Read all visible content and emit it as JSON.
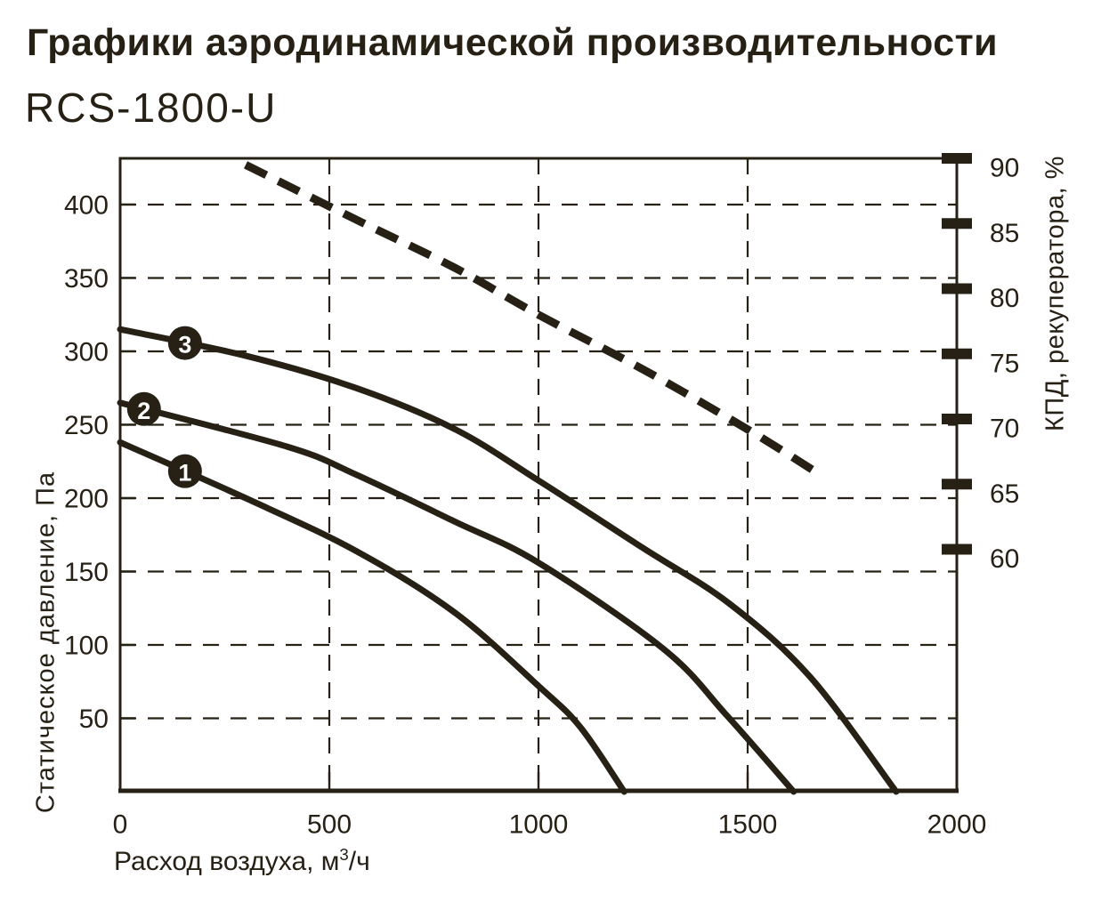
{
  "colors": {
    "ink": "#262015",
    "background": "#ffffff",
    "marker_text": "#ffffff"
  },
  "chart_data": {
    "type": "line",
    "title": "Графики аэродинамической производительности",
    "subtitle": "RCS-1800-U",
    "grid": true,
    "legend": "none",
    "x_axis": {
      "label_prefix": "Расход воздуха, м",
      "label_sup": "3",
      "label_suffix": "/ч",
      "ticks": [
        0,
        500,
        1000,
        1500,
        2000
      ],
      "range": [
        0,
        2000
      ]
    },
    "y_left_axis": {
      "label": "Статическое давление, Па",
      "ticks": [
        50,
        100,
        150,
        200,
        250,
        300,
        350,
        400
      ],
      "range": [
        0,
        431.5
      ]
    },
    "y_right_axis": {
      "label": "КПД, рекуператора, %",
      "ticks": [
        60,
        65,
        70,
        75,
        80,
        85,
        90
      ],
      "range": [
        41.4,
        90
      ]
    },
    "series": [
      {
        "id": "fan-curve-1",
        "marker_label": "1",
        "marker_flow": 155,
        "style": "solid",
        "axis": "left",
        "points": [
          [
            0,
            238
          ],
          [
            300,
            200
          ],
          [
            564,
            164
          ],
          [
            800,
            122
          ],
          [
            1000,
            72
          ],
          [
            1100,
            44
          ],
          [
            1205,
            0
          ]
        ]
      },
      {
        "id": "fan-curve-2",
        "marker_label": "2",
        "marker_flow": 57,
        "style": "solid",
        "axis": "left",
        "points": [
          [
            0,
            265
          ],
          [
            400,
            235
          ],
          [
            564,
            216
          ],
          [
            800,
            184
          ],
          [
            1000,
            156
          ],
          [
            1300,
            97
          ],
          [
            1450,
            52
          ],
          [
            1610,
            0
          ]
        ]
      },
      {
        "id": "fan-curve-3",
        "marker_label": "3",
        "marker_flow": 155,
        "style": "solid",
        "axis": "left",
        "points": [
          [
            0,
            315
          ],
          [
            300,
            297
          ],
          [
            564,
            275
          ],
          [
            800,
            247
          ],
          [
            1000,
            212
          ],
          [
            1250,
            166
          ],
          [
            1457,
            128
          ],
          [
            1650,
            78
          ],
          [
            1855,
            0
          ]
        ]
      },
      {
        "id": "efficiency-curve",
        "style": "dashed",
        "axis": "right",
        "points": [
          [
            300,
            89.5
          ],
          [
            564,
            85.3
          ],
          [
            800,
            81.6
          ],
          [
            1000,
            78
          ],
          [
            1250,
            73.8
          ],
          [
            1500,
            69.2
          ],
          [
            1660,
            66
          ]
        ]
      }
    ]
  }
}
